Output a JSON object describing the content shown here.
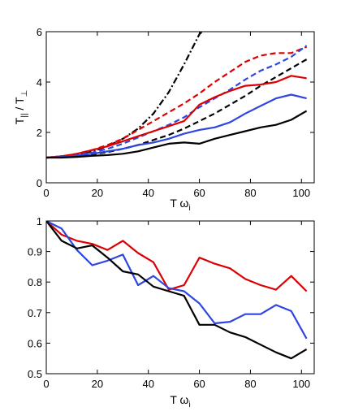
{
  "chart_data": [
    {
      "type": "line",
      "xlabel": "T ω",
      "xlabel_sub": "i",
      "ylabel": "T",
      "ylabel_sub1": "||",
      "ylabel_mid": " / T",
      "ylabel_sub2": "⊥",
      "xlim": [
        0,
        105
      ],
      "ylim": [
        0,
        6
      ],
      "xticks": [
        0,
        20,
        40,
        60,
        80,
        100
      ],
      "yticks": [
        0,
        2,
        4,
        6
      ],
      "grid": false,
      "series": [
        {
          "color": "#000000",
          "dash": "dashdot",
          "x": [
            0,
            6,
            12,
            18,
            24,
            30,
            36,
            42,
            48,
            54,
            60,
            62
          ],
          "y": [
            1.0,
            1.05,
            1.13,
            1.25,
            1.45,
            1.75,
            2.15,
            2.75,
            3.6,
            4.7,
            5.9,
            6.1
          ]
        },
        {
          "color": "#dd0000",
          "dash": "dashed",
          "x": [
            0,
            6,
            12,
            18,
            24,
            30,
            36,
            42,
            48,
            54,
            60,
            66,
            72,
            78,
            84,
            90,
            96,
            102
          ],
          "y": [
            1.0,
            1.05,
            1.15,
            1.3,
            1.5,
            1.75,
            2.1,
            2.45,
            2.8,
            3.15,
            3.55,
            4.0,
            4.4,
            4.8,
            5.05,
            5.15,
            5.15,
            5.4
          ]
        },
        {
          "color": "#2d46e0",
          "dash": "dashed",
          "x": [
            0,
            6,
            12,
            18,
            24,
            30,
            36,
            42,
            48,
            54,
            60,
            66,
            72,
            78,
            84,
            90,
            96,
            102
          ],
          "y": [
            1.0,
            1.02,
            1.1,
            1.2,
            1.35,
            1.55,
            1.8,
            2.05,
            2.3,
            2.6,
            3.0,
            3.35,
            3.7,
            4.1,
            4.45,
            4.7,
            5.0,
            5.45
          ]
        },
        {
          "color": "#000000",
          "dash": "dashed",
          "x": [
            0,
            6,
            12,
            18,
            24,
            30,
            36,
            42,
            48,
            54,
            60,
            66,
            72,
            78,
            84,
            90,
            96,
            102
          ],
          "y": [
            1.0,
            1.02,
            1.07,
            1.13,
            1.22,
            1.35,
            1.5,
            1.7,
            1.9,
            2.15,
            2.45,
            2.75,
            3.1,
            3.45,
            3.85,
            4.2,
            4.55,
            4.9
          ]
        },
        {
          "color": "#dd0000",
          "dash": "solid",
          "x": [
            0,
            6,
            12,
            18,
            24,
            30,
            36,
            42,
            48,
            54,
            60,
            66,
            72,
            78,
            84,
            90,
            96,
            102
          ],
          "y": [
            1.0,
            1.05,
            1.15,
            1.3,
            1.45,
            1.65,
            1.85,
            2.05,
            2.25,
            2.45,
            3.1,
            3.4,
            3.65,
            3.85,
            3.9,
            4.0,
            4.25,
            4.15
          ]
        },
        {
          "color": "#2d46e0",
          "dash": "solid",
          "x": [
            0,
            6,
            12,
            18,
            24,
            30,
            36,
            42,
            48,
            54,
            60,
            66,
            72,
            78,
            84,
            90,
            96,
            102
          ],
          "y": [
            1.0,
            1.02,
            1.08,
            1.15,
            1.25,
            1.35,
            1.5,
            1.6,
            1.75,
            1.95,
            2.1,
            2.2,
            2.4,
            2.75,
            3.05,
            3.35,
            3.5,
            3.35
          ]
        },
        {
          "color": "#000000",
          "dash": "solid",
          "x": [
            0,
            6,
            12,
            18,
            24,
            30,
            36,
            42,
            48,
            54,
            60,
            66,
            72,
            78,
            84,
            90,
            96,
            102
          ],
          "y": [
            1.0,
            1.0,
            1.03,
            1.07,
            1.1,
            1.15,
            1.25,
            1.4,
            1.55,
            1.6,
            1.55,
            1.75,
            1.9,
            2.05,
            2.2,
            2.3,
            2.5,
            2.85
          ]
        }
      ]
    },
    {
      "type": "line",
      "xlabel": "T ω",
      "xlabel_sub": "i",
      "ylabel": "",
      "xlim": [
        0,
        105
      ],
      "ylim": [
        0.5,
        1.0
      ],
      "xticks": [
        0,
        20,
        40,
        60,
        80,
        100
      ],
      "yticks": [
        0.5,
        0.6,
        0.7,
        0.8,
        0.9,
        1
      ],
      "grid": false,
      "series": [
        {
          "color": "#dd0000",
          "dash": "solid",
          "x": [
            0,
            6,
            12,
            18,
            24,
            30,
            36,
            42,
            48,
            54,
            60,
            66,
            72,
            78,
            84,
            90,
            96,
            102
          ],
          "y": [
            1.0,
            0.955,
            0.935,
            0.925,
            0.905,
            0.935,
            0.895,
            0.865,
            0.775,
            0.79,
            0.88,
            0.86,
            0.845,
            0.81,
            0.79,
            0.775,
            0.82,
            0.77
          ]
        },
        {
          "color": "#2d46e0",
          "dash": "solid",
          "x": [
            0,
            6,
            12,
            18,
            24,
            30,
            36,
            42,
            48,
            54,
            60,
            66,
            72,
            78,
            84,
            90,
            96,
            102
          ],
          "y": [
            1.0,
            0.975,
            0.905,
            0.855,
            0.87,
            0.89,
            0.79,
            0.82,
            0.78,
            0.77,
            0.73,
            0.665,
            0.67,
            0.695,
            0.695,
            0.725,
            0.705,
            0.615
          ]
        },
        {
          "color": "#000000",
          "dash": "solid",
          "x": [
            0,
            6,
            12,
            18,
            24,
            30,
            36,
            42,
            48,
            54,
            60,
            66,
            72,
            78,
            84,
            90,
            96,
            102
          ],
          "y": [
            1.0,
            0.935,
            0.91,
            0.92,
            0.88,
            0.835,
            0.825,
            0.785,
            0.77,
            0.755,
            0.66,
            0.66,
            0.635,
            0.62,
            0.595,
            0.57,
            0.55,
            0.58
          ]
        }
      ]
    }
  ]
}
